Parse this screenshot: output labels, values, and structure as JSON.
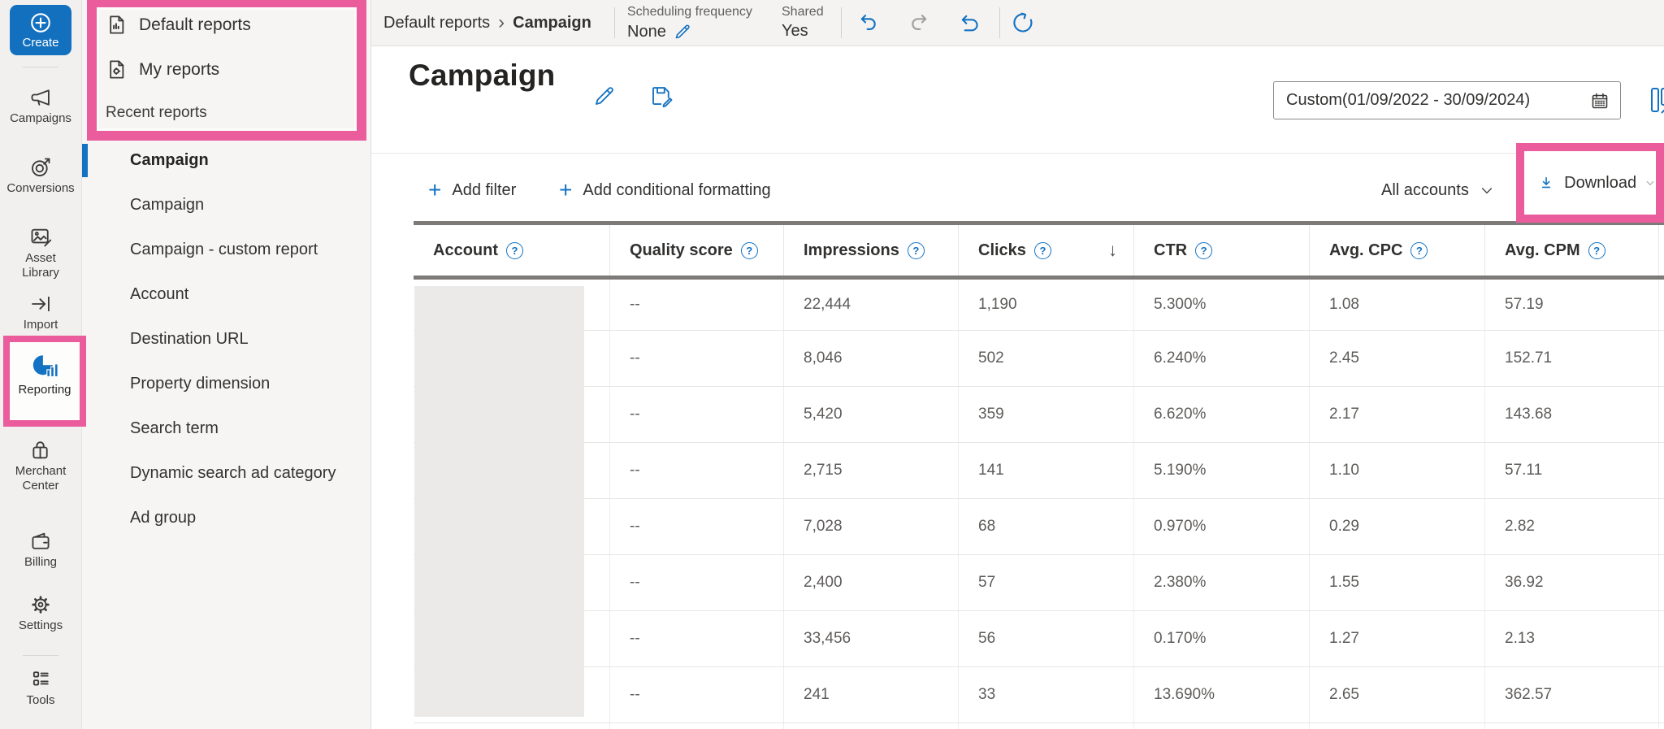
{
  "colors": {
    "accent_blue": "#1372c2",
    "highlight_pink": "#ea5c9b",
    "create_button": "#1270bf"
  },
  "sidebar": {
    "items": [
      {
        "label": "Create"
      },
      {
        "label": "Campaigns"
      },
      {
        "label": "Conversions"
      },
      {
        "label": "Asset Library"
      },
      {
        "label": "Import"
      },
      {
        "label": "Reporting",
        "selected": true
      },
      {
        "label": "Merchant Center"
      },
      {
        "label": "Billing"
      },
      {
        "label": "Settings"
      },
      {
        "label": "Tools"
      }
    ]
  },
  "reports_panel": {
    "default_reports_label": "Default reports",
    "my_reports_label": "My reports",
    "recent_label": "Recent reports",
    "selected_index": 0,
    "recent_items": [
      "Campaign",
      "Campaign",
      "Campaign - custom report",
      "Account",
      "Destination URL",
      "Property dimension",
      "Search term",
      "Dynamic search ad category",
      "Ad group"
    ]
  },
  "topbar": {
    "breadcrumb_root": "Default reports",
    "breadcrumb_current": "Campaign",
    "breadcrumb_separator": "›",
    "scheduling_label": "Scheduling frequency",
    "scheduling_value": "None",
    "shared_label": "Shared",
    "shared_value": "Yes"
  },
  "report_header": {
    "title": "Campaign",
    "date_range": "Custom(01/09/2022 - 30/09/2024)"
  },
  "toolbar": {
    "add_filter_label": "Add filter",
    "add_conditional_label": "Add conditional formatting",
    "plus_glyph": "+",
    "accounts_label": "All accounts",
    "download_label": "Download"
  },
  "table": {
    "columns": [
      {
        "label": "Account",
        "help": true
      },
      {
        "label": "Quality score",
        "help": true
      },
      {
        "label": "Impressions",
        "help": true
      },
      {
        "label": "Clicks",
        "help": true,
        "sorted": "desc"
      },
      {
        "label": "CTR",
        "help": true
      },
      {
        "label": "Avg. CPC",
        "help": true
      },
      {
        "label": "Avg. CPM",
        "help": true
      }
    ],
    "rows": [
      [
        "",
        "--",
        "22,444",
        "1,190",
        "5.300%",
        "1.08",
        "57.19"
      ],
      [
        "",
        "--",
        "8,046",
        "502",
        "6.240%",
        "2.45",
        "152.71"
      ],
      [
        "",
        "--",
        "5,420",
        "359",
        "6.620%",
        "2.17",
        "143.68"
      ],
      [
        "",
        "--",
        "2,715",
        "141",
        "5.190%",
        "1.10",
        "57.11"
      ],
      [
        "",
        "--",
        "7,028",
        "68",
        "0.970%",
        "0.29",
        "2.82"
      ],
      [
        "",
        "--",
        "2,400",
        "57",
        "2.380%",
        "1.55",
        "36.92"
      ],
      [
        "",
        "--",
        "33,456",
        "56",
        "0.170%",
        "1.27",
        "2.13"
      ],
      [
        "",
        "--",
        "241",
        "33",
        "13.690%",
        "2.65",
        "362.57"
      ]
    ]
  }
}
